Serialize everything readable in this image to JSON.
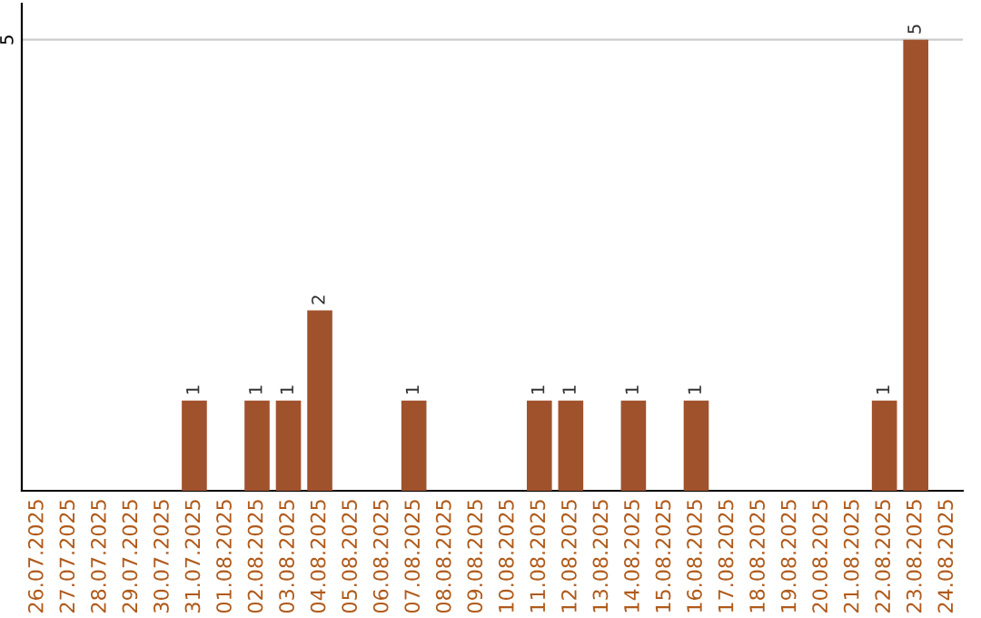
{
  "chart_data": {
    "type": "bar",
    "categories": [
      "26.07.2025",
      "27.07.2025",
      "28.07.2025",
      "29.07.2025",
      "30.07.2025",
      "31.07.2025",
      "01.08.2025",
      "02.08.2025",
      "03.08.2025",
      "04.08.2025",
      "05.08.2025",
      "06.08.2025",
      "07.08.2025",
      "08.08.2025",
      "09.08.2025",
      "10.08.2025",
      "11.08.2025",
      "12.08.2025",
      "13.08.2025",
      "14.08.2025",
      "15.08.2025",
      "16.08.2025",
      "17.08.2025",
      "18.08.2025",
      "19.08.2025",
      "20.08.2025",
      "21.08.2025",
      "22.08.2025",
      "23.08.2025",
      "24.08.2025"
    ],
    "values": [
      0,
      0,
      0,
      0,
      0,
      1,
      0,
      1,
      1,
      2,
      0,
      0,
      1,
      0,
      0,
      0,
      1,
      1,
      0,
      1,
      0,
      1,
      0,
      0,
      0,
      0,
      0,
      1,
      5,
      0
    ],
    "value_labels": [
      null,
      null,
      null,
      null,
      null,
      "1",
      null,
      "1",
      "1",
      "2",
      null,
      null,
      "1",
      null,
      null,
      null,
      "1",
      "1",
      null,
      "1",
      null,
      "1",
      null,
      null,
      null,
      null,
      null,
      "1",
      "5",
      null
    ],
    "color": "#a0522d",
    "ylim": [
      0,
      5.4
    ],
    "yticks": [
      5
    ],
    "grid": "y"
  }
}
